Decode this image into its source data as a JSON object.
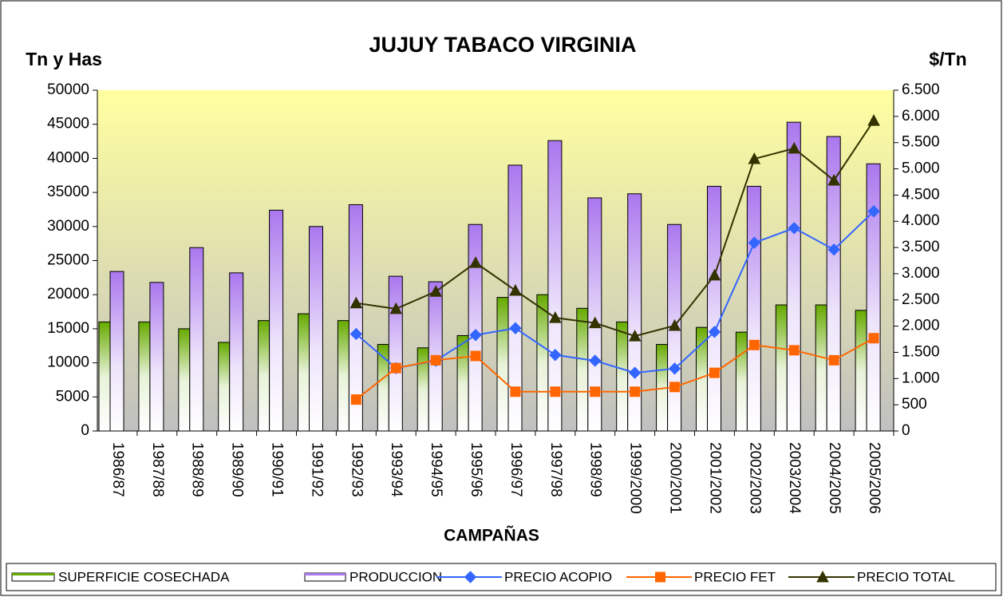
{
  "chart_data": {
    "type": "bar",
    "title": "JUJUY TABACO VIRGINIA",
    "y_label": "Tn y Has",
    "y2_label": "$/Tn",
    "x_label": "CAMPAÑAS",
    "categories": [
      "1986/87",
      "1987/88",
      "1988/89",
      "1989/90",
      "1990/91",
      "1991/92",
      "1992/93",
      "1993/94",
      "1994/95",
      "1995/96",
      "1996/97",
      "1997/98",
      "1998/99",
      "1999/2000",
      "2000/2001",
      "2001/2002",
      "2002/2003",
      "2003/2004",
      "2004/2005",
      "2005/2006"
    ],
    "ylim": [
      0,
      50000
    ],
    "yticks": [
      0,
      5000,
      10000,
      15000,
      20000,
      25000,
      30000,
      35000,
      40000,
      45000,
      50000
    ],
    "y2lim": [
      0,
      6500
    ],
    "y2ticks": [
      0,
      500,
      {
        "value": 1000,
        "label": "1.000"
      },
      {
        "value": 1500,
        "label": "1.500"
      },
      {
        "value": 2000,
        "label": "2.000"
      },
      {
        "value": 2500,
        "label": "2.500"
      },
      {
        "value": 3000,
        "label": "3.000"
      },
      {
        "value": 3500,
        "label": "3.500"
      },
      {
        "value": 4000,
        "label": "4.000"
      },
      {
        "value": 4500,
        "label": "4.500"
      },
      {
        "value": 5000,
        "label": "5.000"
      },
      {
        "value": 5500,
        "label": "5.500"
      },
      {
        "value": 6000,
        "label": "6.000"
      },
      {
        "value": 6500,
        "label": "6.500"
      }
    ],
    "series": [
      {
        "name": "SUPERFICIE COSECHADA",
        "type": "bar",
        "color": "#66aa00",
        "values": [
          16000,
          16000,
          15000,
          13000,
          16200,
          17200,
          16200,
          12700,
          12200,
          14000,
          19600,
          20000,
          18000,
          16000,
          12700,
          15200,
          14500,
          18500,
          18500,
          17700
        ]
      },
      {
        "name": "PRODUCCION",
        "type": "bar",
        "color": "#aa77ee",
        "values": [
          23400,
          21800,
          26900,
          23200,
          32400,
          30000,
          33200,
          22700,
          21900,
          30300,
          39000,
          42600,
          34200,
          34800,
          30300,
          35900,
          35900,
          45300,
          43200,
          39200
        ]
      },
      {
        "name": "PRECIO ACOPIO",
        "type": "line",
        "axis": "y2",
        "marker": "diamond",
        "color": "#3366ff",
        "values": [
          null,
          null,
          null,
          null,
          null,
          null,
          1850,
          1200,
          1340,
          1830,
          1960,
          1450,
          1340,
          1110,
          1190,
          1890,
          3590,
          3870,
          3460,
          4190
        ]
      },
      {
        "name": "PRECIO FET",
        "type": "line",
        "axis": "y2",
        "marker": "square",
        "color": "#ff6600",
        "values": [
          null,
          null,
          null,
          null,
          null,
          null,
          600,
          1200,
          1350,
          1430,
          750,
          750,
          750,
          750,
          840,
          1110,
          1640,
          1540,
          1350,
          1770
        ]
      },
      {
        "name": "PRECIO TOTAL",
        "type": "line",
        "axis": "y2",
        "marker": "triangle",
        "color": "#333300",
        "values": [
          null,
          null,
          null,
          null,
          null,
          null,
          2440,
          2330,
          2660,
          3210,
          2680,
          2160,
          2060,
          1810,
          2010,
          2970,
          5190,
          5390,
          4780,
          5920
        ]
      }
    ]
  }
}
